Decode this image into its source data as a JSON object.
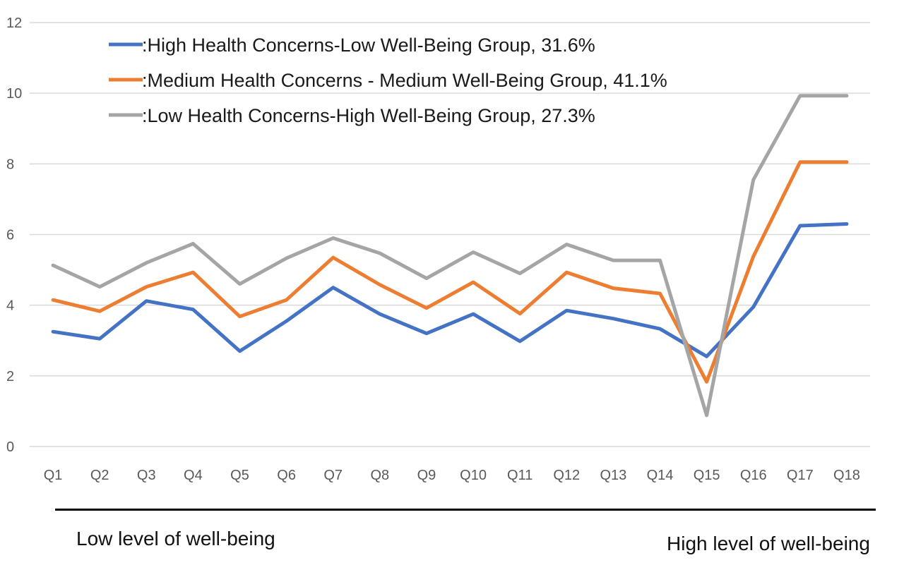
{
  "chart_data": {
    "type": "line",
    "title": "",
    "xlabel": "",
    "ylabel": "",
    "ylim": [
      0,
      12
    ],
    "yticks": [
      0,
      2,
      4,
      6,
      8,
      10,
      12
    ],
    "grid": true,
    "legend_position": "top-left",
    "categories": [
      "Q1",
      "Q2",
      "Q3",
      "Q4",
      "Q5",
      "Q6",
      "Q7",
      "Q8",
      "Q9",
      "Q10",
      "Q11",
      "Q12",
      "Q13",
      "Q14",
      "Q15",
      "Q16",
      "Q17",
      "Q18"
    ],
    "series": [
      {
        "name": ":High Health Concerns-Low Well-Being Group, 31.6%",
        "color": "#4472c4",
        "values": [
          3.25,
          3.05,
          4.12,
          3.88,
          2.7,
          3.55,
          4.5,
          3.75,
          3.2,
          3.75,
          2.98,
          3.85,
          3.62,
          3.33,
          2.55,
          3.95,
          6.25,
          6.3
        ]
      },
      {
        "name": ":Medium Health Concerns - Medium Well-Being Group, 41.1%",
        "color": "#ed7d31",
        "values": [
          4.15,
          3.83,
          4.52,
          4.93,
          3.68,
          4.15,
          5.35,
          4.58,
          3.92,
          4.65,
          3.76,
          4.93,
          4.48,
          4.33,
          1.83,
          5.38,
          8.05,
          8.05
        ]
      },
      {
        "name": ":Low Health Concerns-High Well-Being Group, 27.3%",
        "color": "#a5a5a5",
        "values": [
          5.13,
          4.52,
          5.2,
          5.74,
          4.6,
          5.33,
          5.9,
          5.47,
          4.76,
          5.5,
          4.9,
          5.72,
          5.27,
          5.27,
          0.88,
          7.55,
          9.93,
          9.93
        ]
      }
    ]
  },
  "footer": {
    "left_label": "Low level of  well-being",
    "right_label": "High level of well-being"
  }
}
